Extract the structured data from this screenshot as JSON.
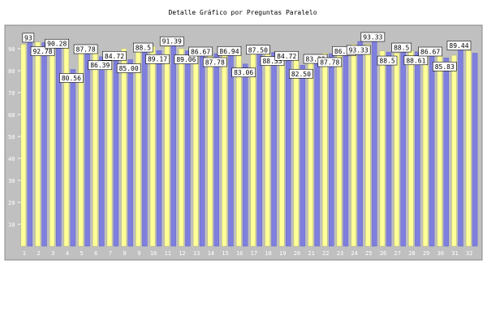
{
  "chart_data": {
    "type": "bar",
    "title": "Detalle Gráfico por Preguntas Paralelo",
    "xlabel": "",
    "ylabel": "",
    "ylim": [
      0,
      100
    ],
    "yticks": [
      10,
      20,
      30,
      40,
      50,
      60,
      70,
      80,
      90
    ],
    "grid": false,
    "legend": "none",
    "categories": [
      "1",
      "2",
      "3",
      "4",
      "5",
      "6",
      "7",
      "8",
      "9",
      "10",
      "11",
      "12",
      "13",
      "14",
      "15",
      "16",
      "17",
      "18",
      "19",
      "20",
      "21",
      "22",
      "23",
      "24",
      "25",
      "26",
      "27",
      "28",
      "29",
      "30",
      "31",
      "32"
    ],
    "series": [
      {
        "values": [
          93.0,
          92.78,
          90.28,
          80.56,
          87.78,
          86.39,
          84.72,
          85.0,
          88.5,
          89.17,
          91.39,
          89.06,
          86.67,
          87.78,
          86.94,
          83.06,
          87.5,
          88.33,
          84.72,
          82.5,
          83.33,
          87.78,
          86.94,
          93.33,
          93.33,
          88.5,
          88.5,
          88.61,
          86.67,
          85.83,
          89.44,
          88.0
        ]
      },
      {
        "values": [
          92.0,
          93.0,
          90.0,
          91.0,
          89.0,
          90.0,
          88.0,
          90.0,
          90.0,
          91.0,
          91.0,
          90.0,
          89.0,
          90.0,
          91.0,
          89.0,
          89.0,
          88.0,
          87.0,
          86.0,
          85.0,
          88.0,
          89.0,
          92.0,
          92.0,
          89.0,
          88.0,
          89.0,
          87.0,
          88.0,
          87.0,
          89.19
        ]
      }
    ],
    "data_labels": [
      {
        "category": "1",
        "text": "93"
      },
      {
        "category": "2",
        "text": "92.78"
      },
      {
        "category": "3",
        "text": "90.28"
      },
      {
        "category": "4",
        "text": "80.56"
      },
      {
        "category": "5",
        "text": "87.78"
      },
      {
        "category": "6",
        "text": "86.39"
      },
      {
        "category": "7",
        "text": "84.72"
      },
      {
        "category": "8",
        "text": "85.00"
      },
      {
        "category": "9",
        "text": "88.5"
      },
      {
        "category": "10",
        "text": "89.17"
      },
      {
        "category": "11",
        "text": "91.39"
      },
      {
        "category": "12",
        "text": "89.06"
      },
      {
        "category": "13",
        "text": "86.67"
      },
      {
        "category": "14",
        "text": "87.78"
      },
      {
        "category": "15",
        "text": "86.94"
      },
      {
        "category": "16",
        "text": "83.06"
      },
      {
        "category": "17",
        "text": "87.50"
      },
      {
        "category": "18",
        "text": "88.33"
      },
      {
        "category": "19",
        "text": "84.72"
      },
      {
        "category": "20",
        "text": "82.50"
      },
      {
        "category": "21",
        "text": "83.33"
      },
      {
        "category": "22",
        "text": "87.78"
      },
      {
        "category": "23",
        "text": "86.94"
      },
      {
        "category": "24",
        "text": "93.33"
      },
      {
        "category": "25",
        "text": "93.33"
      },
      {
        "category": "26",
        "text": "88.5"
      },
      {
        "category": "27",
        "text": "88.5"
      },
      {
        "category": "28",
        "text": "88.61"
      },
      {
        "category": "29",
        "text": "86.67"
      },
      {
        "category": "30",
        "text": "85.83"
      },
      {
        "category": "31",
        "text": "89.44"
      }
    ],
    "colors": {
      "series_a": "#7f7fdf",
      "series_b": "#ffff99",
      "plot_bg": "#c0c0c0",
      "label_box": "#ffffff"
    }
  }
}
